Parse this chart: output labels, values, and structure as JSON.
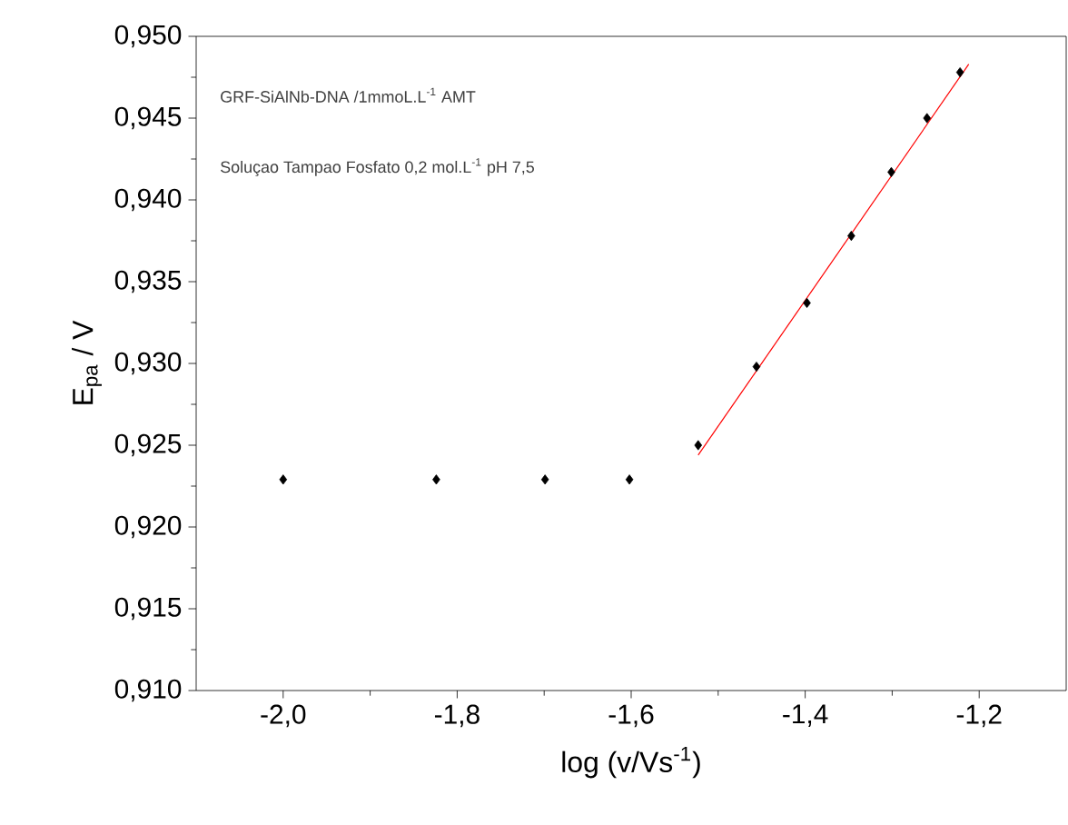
{
  "chart_data": {
    "type": "scatter",
    "xlabel": "log (v/Vs$^{-1}$)",
    "ylabel": "E$_{pa}$ / V",
    "annotations": [
      "GRF-SiAlNb-DNA /1mmoL.L$^{-1}$ AMT",
      "Soluçao Tampao Fosfato 0,2 mol.L$^{-1}$ pH 7,5"
    ],
    "series": [
      {
        "color": "#000000",
        "marker": "diamond",
        "x": [
          -2.0,
          -1.824,
          -1.699,
          -1.602,
          -1.523,
          -1.456,
          -1.398,
          -1.347,
          -1.301,
          -1.26,
          -1.222
        ],
        "values": [
          0.9229,
          0.9229,
          0.9229,
          0.9229,
          0.925,
          0.9298,
          0.9337,
          0.9378,
          0.9417,
          0.945,
          0.9478
        ]
      },
      {
        "type": "line",
        "color": "#ff0000",
        "line_style": "solid",
        "x": [
          -1.523,
          -1.212
        ],
        "values": [
          0.9244,
          0.9483
        ]
      }
    ],
    "xlim": [
      -2.1,
      -1.1
    ],
    "xticks": [
      {
        "value": -2.0,
        "label": "-2,0"
      },
      {
        "value": -1.8,
        "label": "-1,8"
      },
      {
        "value": -1.6,
        "label": "-1,6"
      },
      {
        "value": -1.4,
        "label": "-1,4"
      },
      {
        "value": -1.2,
        "label": "-1,2"
      }
    ],
    "ylim": [
      0.91,
      0.95
    ],
    "yticks": [
      {
        "value": 0.91,
        "label": "0,910"
      },
      {
        "value": 0.915,
        "label": "0,915"
      },
      {
        "value": 0.92,
        "label": "0,920"
      },
      {
        "value": 0.925,
        "label": "0,925"
      },
      {
        "value": 0.93,
        "label": "0,930"
      },
      {
        "value": 0.935,
        "label": "0,935"
      },
      {
        "value": 0.94,
        "label": "0,940"
      },
      {
        "value": 0.945,
        "label": "0,945"
      },
      {
        "value": 0.95,
        "label": "0,950"
      }
    ],
    "grid": false
  }
}
